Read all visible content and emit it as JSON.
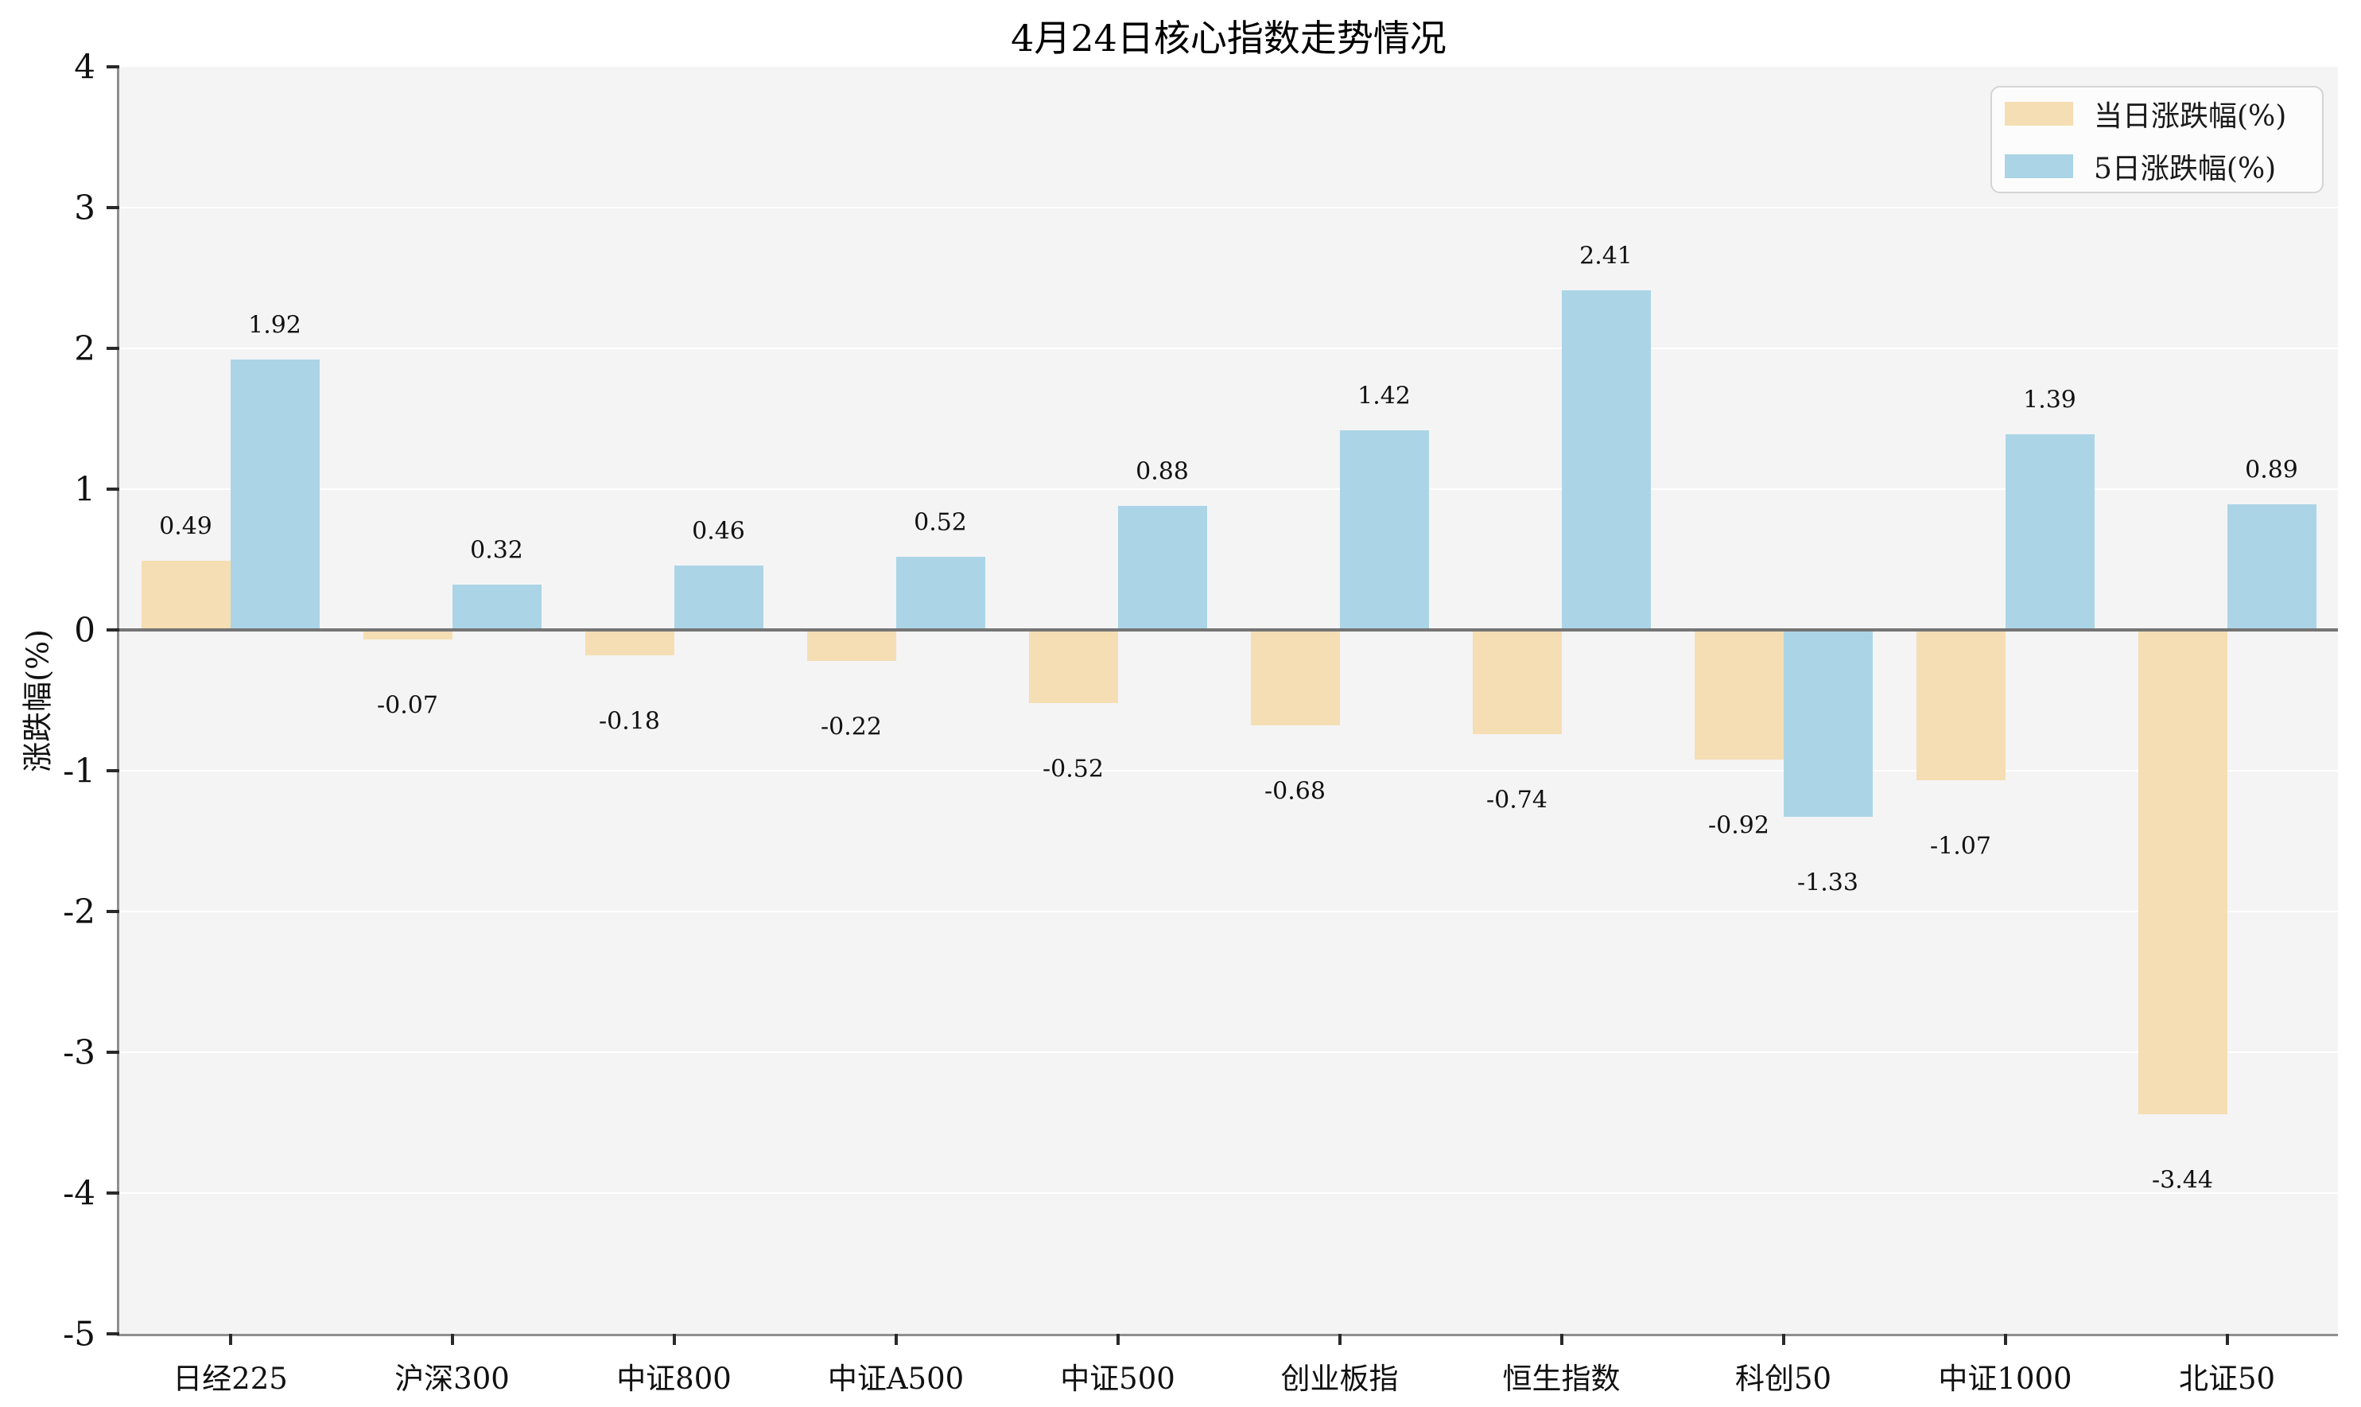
{
  "title": "4月24日核心指数走势情况",
  "y_axis_title": "涨跌幅(%)",
  "legend": {
    "items": [
      {
        "label": "当日涨跌幅(%)",
        "color": "#f5deb3"
      },
      {
        "label": "5日涨跌幅(%)",
        "color": "#abd5e6"
      }
    ],
    "position": "upper right"
  },
  "colors": {
    "series_daily": "#f5deb3",
    "series_5day": "#abd5e6",
    "plot_background": "#f4f4f5",
    "gridline": "#ffffff",
    "zero_line": "#757575",
    "spine": "#8f8f8f",
    "text": "#111111"
  },
  "chart_data": {
    "type": "bar",
    "title": "4月24日核心指数走势情况",
    "xlabel": "",
    "ylabel": "涨跌幅(%)",
    "categories": [
      "日经225",
      "沪深300",
      "中证800",
      "中证A500",
      "中证500",
      "创业板指",
      "恒生指数",
      "科创50",
      "中证1000",
      "北证50"
    ],
    "series": [
      {
        "name": "当日涨跌幅(%)",
        "color": "#f5deb3",
        "values": [
          0.49,
          -0.07,
          -0.18,
          -0.22,
          -0.52,
          -0.68,
          -0.74,
          -0.92,
          -1.07,
          -3.44
        ]
      },
      {
        "name": "5日涨跌幅(%)",
        "color": "#abd5e6",
        "values": [
          1.92,
          0.32,
          0.46,
          0.52,
          0.88,
          1.42,
          2.41,
          -1.33,
          1.39,
          0.89
        ]
      }
    ],
    "ylim": [
      -5,
      4
    ],
    "yticks": [
      4,
      3,
      2,
      1,
      0,
      -1,
      -2,
      -3,
      -4,
      -5
    ],
    "grid": true,
    "data_labels": true,
    "legend_position": "upper right"
  }
}
